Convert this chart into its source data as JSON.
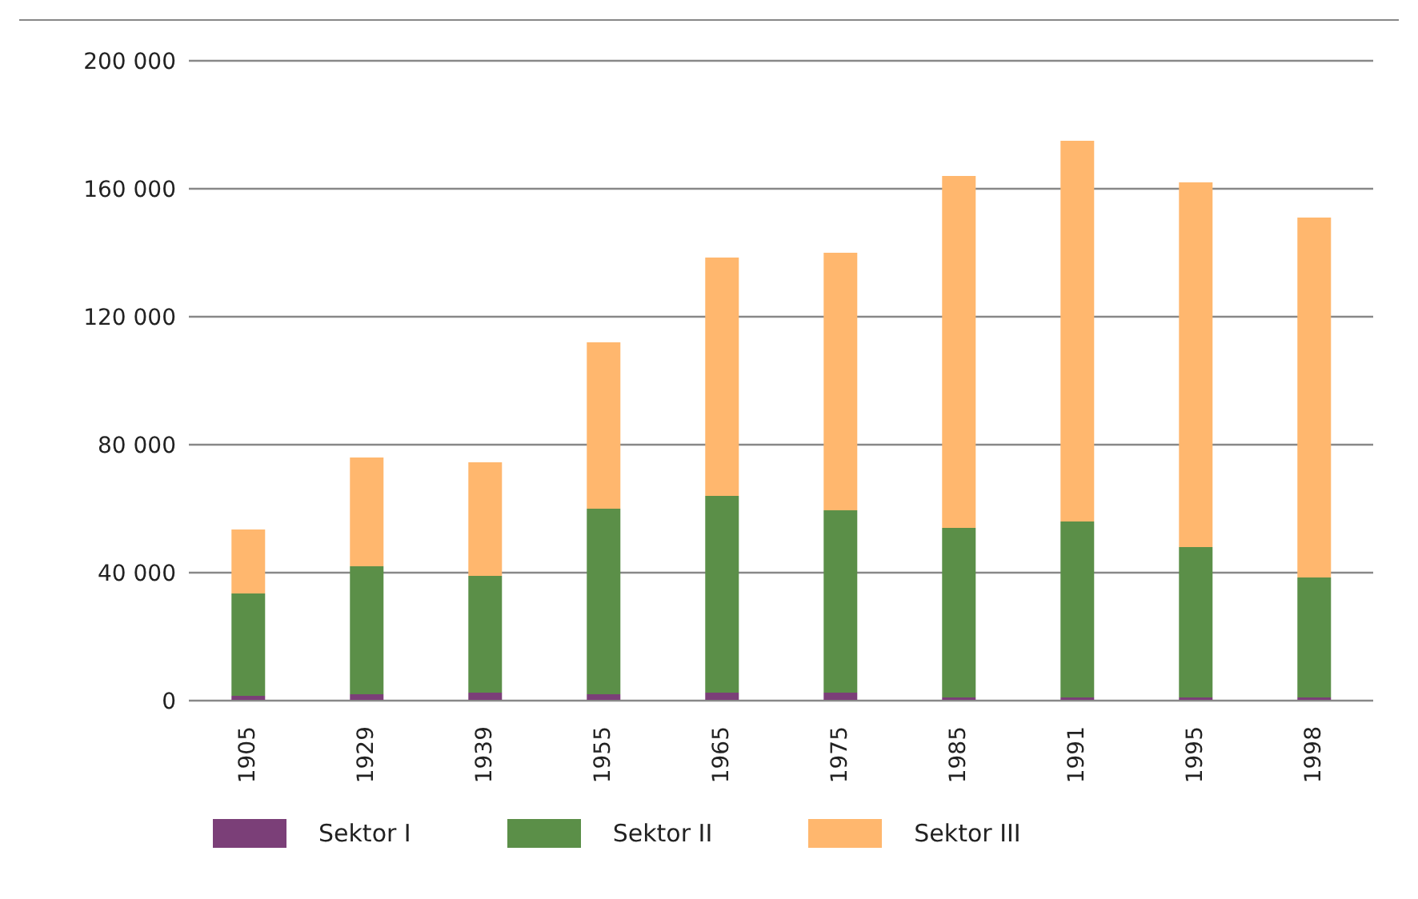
{
  "chart_data": {
    "type": "bar",
    "stacked": true,
    "categories": [
      "1905",
      "1929",
      "1939",
      "1955",
      "1965",
      "1975",
      "1985",
      "1991",
      "1995",
      "1998"
    ],
    "series": [
      {
        "name": "Sektor I",
        "color": "#7b3f78",
        "values": [
          1500,
          2000,
          2500,
          2000,
          2500,
          2500,
          1000,
          1000,
          1000,
          1000
        ]
      },
      {
        "name": "Sektor II",
        "color": "#5b8f48",
        "values": [
          32000,
          40000,
          36500,
          58000,
          61500,
          57000,
          53000,
          55000,
          47000,
          37500
        ]
      },
      {
        "name": "Sektor III",
        "color": "#ffb76e",
        "values": [
          20000,
          34000,
          35500,
          52000,
          74500,
          80500,
          110000,
          119000,
          114000,
          112500
        ]
      }
    ],
    "ylim": [
      0,
      200000
    ],
    "yticks": [
      {
        "value": 0,
        "label": "0"
      },
      {
        "value": 40000,
        "label": "40 000"
      },
      {
        "value": 80000,
        "label": "80 000"
      },
      {
        "value": 120000,
        "label": "120 000"
      },
      {
        "value": 160000,
        "label": "160 000"
      },
      {
        "value": 200000,
        "label": "200 000"
      }
    ],
    "grid": "y",
    "legend": "bottom"
  }
}
